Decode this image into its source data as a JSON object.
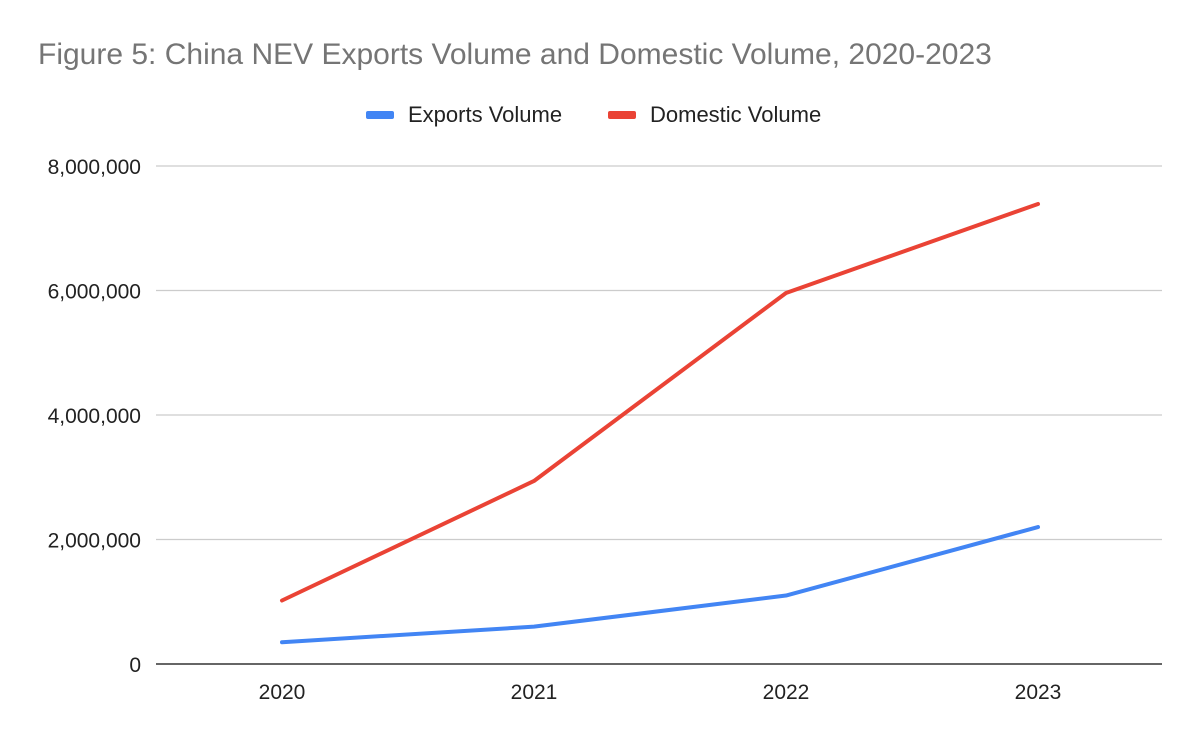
{
  "chart_data": {
    "type": "line",
    "title": "Figure 5: China NEV Exports Volume and Domestic Volume, 2020-2023",
    "xlabel": "",
    "ylabel": "",
    "categories": [
      "2020",
      "2021",
      "2022",
      "2023"
    ],
    "series": [
      {
        "name": "Exports Volume",
        "color": "#4285F4",
        "values": [
          350000,
          600000,
          1100000,
          2200000
        ]
      },
      {
        "name": "Domestic Volume",
        "color": "#EA4335",
        "values": [
          1020000,
          2940000,
          5960000,
          7390000
        ]
      }
    ],
    "ylim": [
      0,
      8000000
    ],
    "yticks": [
      0,
      2000000,
      4000000,
      6000000,
      8000000
    ],
    "ytick_labels": [
      "0",
      "2,000,000",
      "4,000,000",
      "6,000,000",
      "8,000,000"
    ],
    "grid": true,
    "legend_position": "top-center"
  }
}
